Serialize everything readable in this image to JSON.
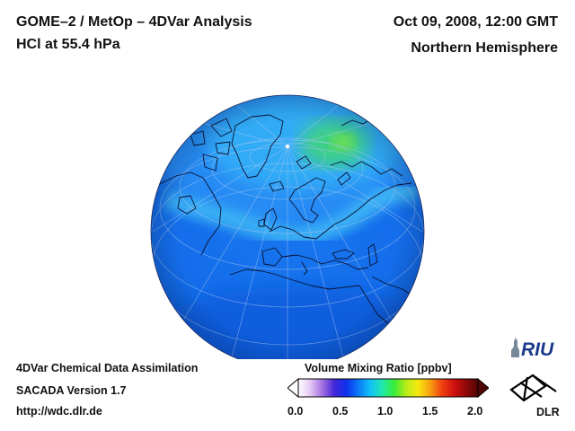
{
  "header": {
    "title_line1": "GOME–2 / MetOp – 4DVar Analysis",
    "title_line2": "HCl at 55.4 hPa",
    "date_line": "Oct 09, 2008, 12:00 GMT",
    "region_line": "Northern Hemisphere"
  },
  "footer": {
    "line1": "4DVar Chemical Data Assimilation",
    "line2": "SACADA Version 1.7",
    "line3": "http://wdc.dlr.de"
  },
  "colorbar": {
    "title": "Volume Mixing Ratio [ppbv]",
    "range": [
      0.0,
      2.0
    ],
    "ticks": [
      "0.0",
      "0.5",
      "1.0",
      "1.5",
      "2.0"
    ],
    "colors": [
      "#ffffff",
      "#e4c8f4",
      "#a470e0",
      "#4428d8",
      "#1030ec",
      "#0a78f8",
      "#10c0f8",
      "#20e8b0",
      "#38ec38",
      "#b8ec18",
      "#f8e810",
      "#f8a010",
      "#f04010",
      "#d01010",
      "#900808",
      "#500404"
    ]
  },
  "logos": {
    "riu": "RIU",
    "dlr": "DLR"
  },
  "colors": {
    "ocean_blue": "#1468ec",
    "field_light": "#2a9af6",
    "field_cyan": "#3cc0f8",
    "field_green": "#40d860",
    "coastline": "#0a1030"
  }
}
